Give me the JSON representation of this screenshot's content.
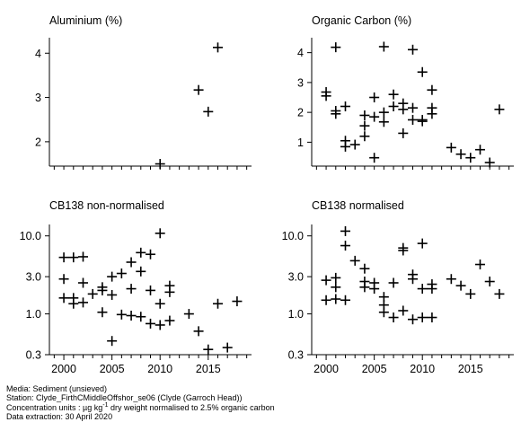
{
  "chart_data": [
    {
      "type": "scatter",
      "title": "Aluminium (%)",
      "yscale": "linear",
      "xlim": [
        1998.5,
        2019.5
      ],
      "ylim": [
        1.45,
        4.35
      ],
      "yticks": [
        {
          "v": 2,
          "label": "2"
        },
        {
          "v": 3,
          "label": "3"
        },
        {
          "v": 4,
          "label": "4"
        }
      ],
      "xticks": [],
      "points": [
        [
          2010,
          1.5
        ],
        [
          2014,
          3.17
        ],
        [
          2015,
          2.68
        ],
        [
          2016,
          4.13
        ]
      ]
    },
    {
      "type": "scatter",
      "title": "Organic Carbon (%)",
      "yscale": "linear",
      "xlim": [
        1998.5,
        2019.5
      ],
      "ylim": [
        0.2,
        4.5
      ],
      "yticks": [
        {
          "v": 1,
          "label": "1"
        },
        {
          "v": 2,
          "label": "2"
        },
        {
          "v": 3,
          "label": "3"
        },
        {
          "v": 4,
          "label": "4"
        }
      ],
      "xticks": [],
      "points": [
        [
          2000,
          2.68
        ],
        [
          2000,
          2.55
        ],
        [
          2001,
          4.18
        ],
        [
          2001,
          2.05
        ],
        [
          2001,
          1.95
        ],
        [
          2002,
          2.2
        ],
        [
          2002,
          1.05
        ],
        [
          2002,
          0.85
        ],
        [
          2003,
          0.92
        ],
        [
          2004,
          1.9
        ],
        [
          2004,
          1.55
        ],
        [
          2004,
          1.2
        ],
        [
          2005,
          2.5
        ],
        [
          2005,
          1.85
        ],
        [
          2005,
          0.48
        ],
        [
          2006,
          4.2
        ],
        [
          2006,
          2.0
        ],
        [
          2006,
          1.68
        ],
        [
          2007,
          2.6
        ],
        [
          2007,
          2.2
        ],
        [
          2008,
          2.3
        ],
        [
          2008,
          2.1
        ],
        [
          2008,
          1.3
        ],
        [
          2009,
          4.1
        ],
        [
          2009,
          2.15
        ],
        [
          2009,
          1.75
        ],
        [
          2010,
          3.35
        ],
        [
          2010,
          1.75
        ],
        [
          2010,
          1.7
        ],
        [
          2011,
          2.75
        ],
        [
          2011,
          2.15
        ],
        [
          2011,
          1.95
        ],
        [
          2013,
          0.82
        ],
        [
          2014,
          0.6
        ],
        [
          2015,
          0.48
        ],
        [
          2016,
          0.75
        ],
        [
          2017,
          0.32
        ],
        [
          2018,
          2.1
        ]
      ]
    },
    {
      "type": "scatter",
      "title": "CB138 non-normalised",
      "yscale": "log",
      "xlim": [
        1998.5,
        2019.5
      ],
      "ylim": [
        0.3,
        14
      ],
      "yticks": [
        {
          "v": 0.3,
          "label": "0.3"
        },
        {
          "v": 1,
          "label": "1.0"
        },
        {
          "v": 3,
          "label": "3.0"
        },
        {
          "v": 10,
          "label": "10.0"
        }
      ],
      "xticks": [
        {
          "v": 2000,
          "label": "2000"
        },
        {
          "v": 2005,
          "label": "2005"
        },
        {
          "v": 2010,
          "label": "2010"
        },
        {
          "v": 2015,
          "label": "2015"
        }
      ],
      "points": [
        [
          2000,
          5.3
        ],
        [
          2000,
          2.8
        ],
        [
          2000,
          1.6
        ],
        [
          2001,
          5.3
        ],
        [
          2001,
          1.6
        ],
        [
          2001,
          1.35
        ],
        [
          2002,
          5.4
        ],
        [
          2002,
          2.5
        ],
        [
          2002,
          1.4
        ],
        [
          2003,
          1.8
        ],
        [
          2004,
          2.2
        ],
        [
          2004,
          2.0
        ],
        [
          2004,
          1.05
        ],
        [
          2005,
          3.0
        ],
        [
          2005,
          1.75
        ],
        [
          2005,
          0.45
        ],
        [
          2006,
          3.3
        ],
        [
          2006,
          0.98
        ],
        [
          2007,
          4.6
        ],
        [
          2007,
          2.1
        ],
        [
          2007,
          0.95
        ],
        [
          2008,
          6.1
        ],
        [
          2008,
          3.5
        ],
        [
          2008,
          0.92
        ],
        [
          2009,
          5.8
        ],
        [
          2009,
          2.0
        ],
        [
          2009,
          0.75
        ],
        [
          2010,
          10.8
        ],
        [
          2010,
          1.35
        ],
        [
          2010,
          0.72
        ],
        [
          2011,
          2.3
        ],
        [
          2011,
          1.9
        ],
        [
          2011,
          0.82
        ],
        [
          2013,
          1.0
        ],
        [
          2014,
          0.6
        ],
        [
          2015,
          0.35
        ],
        [
          2016,
          1.35
        ],
        [
          2017,
          0.37
        ],
        [
          2018,
          1.45
        ]
      ]
    },
    {
      "type": "scatter",
      "title": "CB138 normalised",
      "yscale": "log",
      "xlim": [
        1998.5,
        2019.5
      ],
      "ylim": [
        0.3,
        14
      ],
      "yticks": [
        {
          "v": 0.3,
          "label": "0.3"
        },
        {
          "v": 1,
          "label": "1.0"
        },
        {
          "v": 3,
          "label": "3.0"
        },
        {
          "v": 10,
          "label": "10.0"
        }
      ],
      "xticks": [
        {
          "v": 2000,
          "label": "2000"
        },
        {
          "v": 2005,
          "label": "2005"
        },
        {
          "v": 2010,
          "label": "2010"
        },
        {
          "v": 2015,
          "label": "2015"
        }
      ],
      "points": [
        [
          2000,
          2.7
        ],
        [
          2000,
          1.5
        ],
        [
          2001,
          2.9
        ],
        [
          2001,
          2.2
        ],
        [
          2001,
          1.55
        ],
        [
          2002,
          11.5
        ],
        [
          2002,
          7.5
        ],
        [
          2002,
          1.5
        ],
        [
          2003,
          4.8
        ],
        [
          2004,
          3.8
        ],
        [
          2004,
          2.6
        ],
        [
          2004,
          2.2
        ],
        [
          2005,
          2.5
        ],
        [
          2005,
          2.1
        ],
        [
          2006,
          1.65
        ],
        [
          2006,
          1.3
        ],
        [
          2006,
          1.05
        ],
        [
          2007,
          2.5
        ],
        [
          2007,
          0.9
        ],
        [
          2008,
          7.0
        ],
        [
          2008,
          6.5
        ],
        [
          2008,
          1.1
        ],
        [
          2009,
          3.2
        ],
        [
          2009,
          2.8
        ],
        [
          2009,
          0.85
        ],
        [
          2010,
          8.0
        ],
        [
          2010,
          2.1
        ],
        [
          2010,
          0.9
        ],
        [
          2011,
          2.4
        ],
        [
          2011,
          2.1
        ],
        [
          2011,
          0.9
        ],
        [
          2013,
          2.8
        ],
        [
          2014,
          2.3
        ],
        [
          2015,
          1.8
        ],
        [
          2016,
          4.3
        ],
        [
          2017,
          2.6
        ],
        [
          2018,
          1.8
        ]
      ]
    }
  ],
  "footer": {
    "media": "Media: Sediment (unsieved)",
    "station": "Station: Clyde_FirthCMiddleOffshor_se06 (Clyde (Garroch Head))",
    "units_prefix": "Concentration units : µg kg",
    "units_sup": "-1",
    "units_suffix": " dry weight normalised to 2.5% organic carbon",
    "extraction": "Data extraction: 30 April 2020"
  }
}
